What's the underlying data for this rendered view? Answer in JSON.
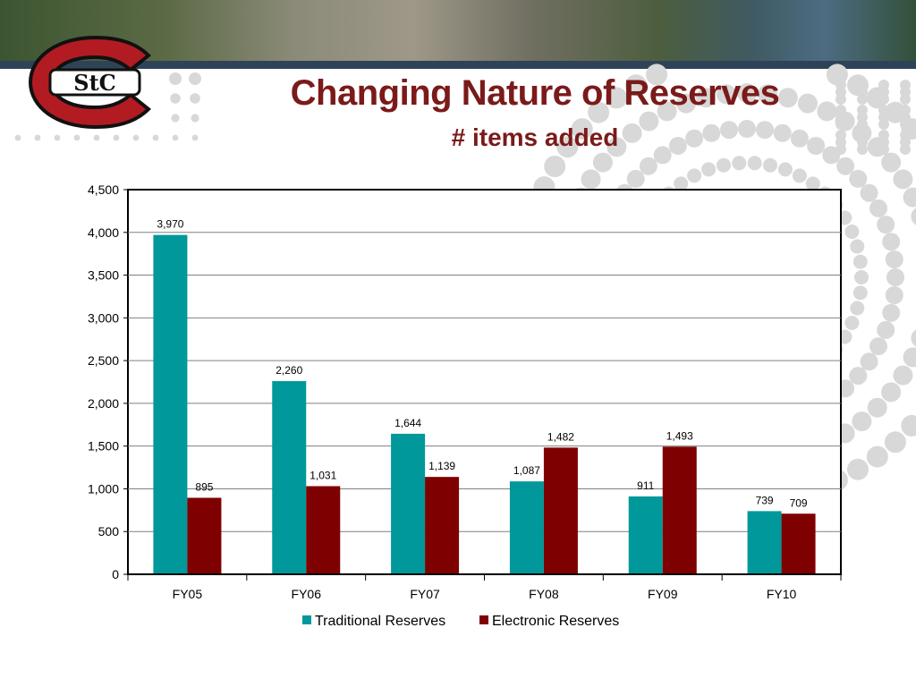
{
  "slide": {
    "title": "Changing Nature of Reserves",
    "subtitle": "# items added",
    "logo_text": "StC"
  },
  "colors": {
    "title": "#7b1a1a",
    "traditional": "#00989a",
    "electronic": "#7f0000",
    "dots": "#d8d8d8"
  },
  "chart_data": {
    "type": "bar",
    "categories": [
      "FY05",
      "FY06",
      "FY07",
      "FY08",
      "FY09",
      "FY10"
    ],
    "series": [
      {
        "name": "Traditional Reserves",
        "values": [
          3970,
          2260,
          1644,
          1087,
          911,
          739
        ]
      },
      {
        "name": "Electronic Reserves",
        "values": [
          895,
          1031,
          1139,
          1482,
          1493,
          709
        ]
      }
    ],
    "ylim": [
      0,
      4500
    ],
    "yticks": [
      0,
      500,
      1000,
      1500,
      2000,
      2500,
      3000,
      3500,
      4000,
      4500
    ],
    "ytick_labels": [
      "0",
      "500",
      "1,000",
      "1,500",
      "2,000",
      "2,500",
      "3,000",
      "3,500",
      "4,000",
      "4,500"
    ],
    "data_labels": [
      [
        "3,970",
        "2,260",
        "1,644",
        "1,087",
        "911",
        "739"
      ],
      [
        "895",
        "1,031",
        "1,139",
        "1,482",
        "1,493",
        "709"
      ]
    ],
    "grid": true,
    "legend_position": "bottom"
  }
}
